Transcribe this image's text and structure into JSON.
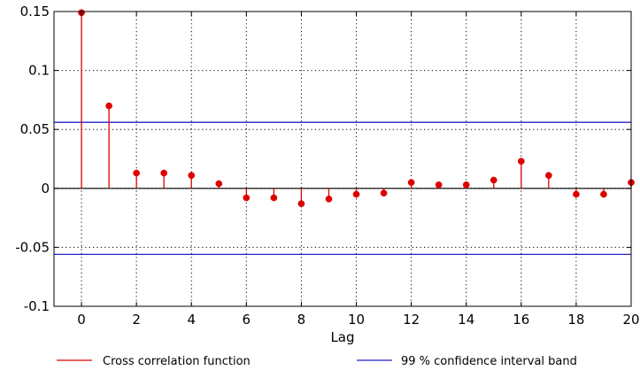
{
  "chart_data": {
    "type": "stem",
    "xlabel": "Lag",
    "ylabel": "",
    "title": "",
    "xlim": [
      -1,
      20
    ],
    "ylim": [
      -0.1,
      0.15
    ],
    "x_ticks": [
      0,
      2,
      4,
      6,
      8,
      10,
      12,
      14,
      16,
      18,
      20
    ],
    "x_tick_labels": [
      "0",
      "2",
      "4",
      "6",
      "8",
      "10",
      "12",
      "14",
      "16",
      "18",
      "20"
    ],
    "y_ticks": [
      -0.1,
      -0.05,
      0,
      0.05,
      0.1,
      0.15
    ],
    "y_tick_labels": [
      "-0.1",
      "-0.05",
      "0",
      "0.05",
      "0.1",
      "0.15"
    ],
    "grid": true,
    "legend_position": "bottom",
    "series": [
      {
        "name": "Cross correlation function",
        "color": "#dd0000",
        "x": [
          0,
          1,
          2,
          3,
          4,
          5,
          6,
          7,
          8,
          9,
          10,
          11,
          12,
          13,
          14,
          15,
          16,
          17,
          18,
          19,
          20
        ],
        "y": [
          0.149,
          0.07,
          0.013,
          0.013,
          0.011,
          0.004,
          -0.008,
          -0.008,
          -0.013,
          -0.009,
          -0.005,
          -0.004,
          0.005,
          0.003,
          0.003,
          0.007,
          0.023,
          0.011,
          -0.005,
          -0.005,
          0.005
        ]
      }
    ],
    "confidence_band": {
      "name": "99 % confidence interval band",
      "color": "#2222cc",
      "upper": 0.056,
      "lower": -0.056
    }
  }
}
